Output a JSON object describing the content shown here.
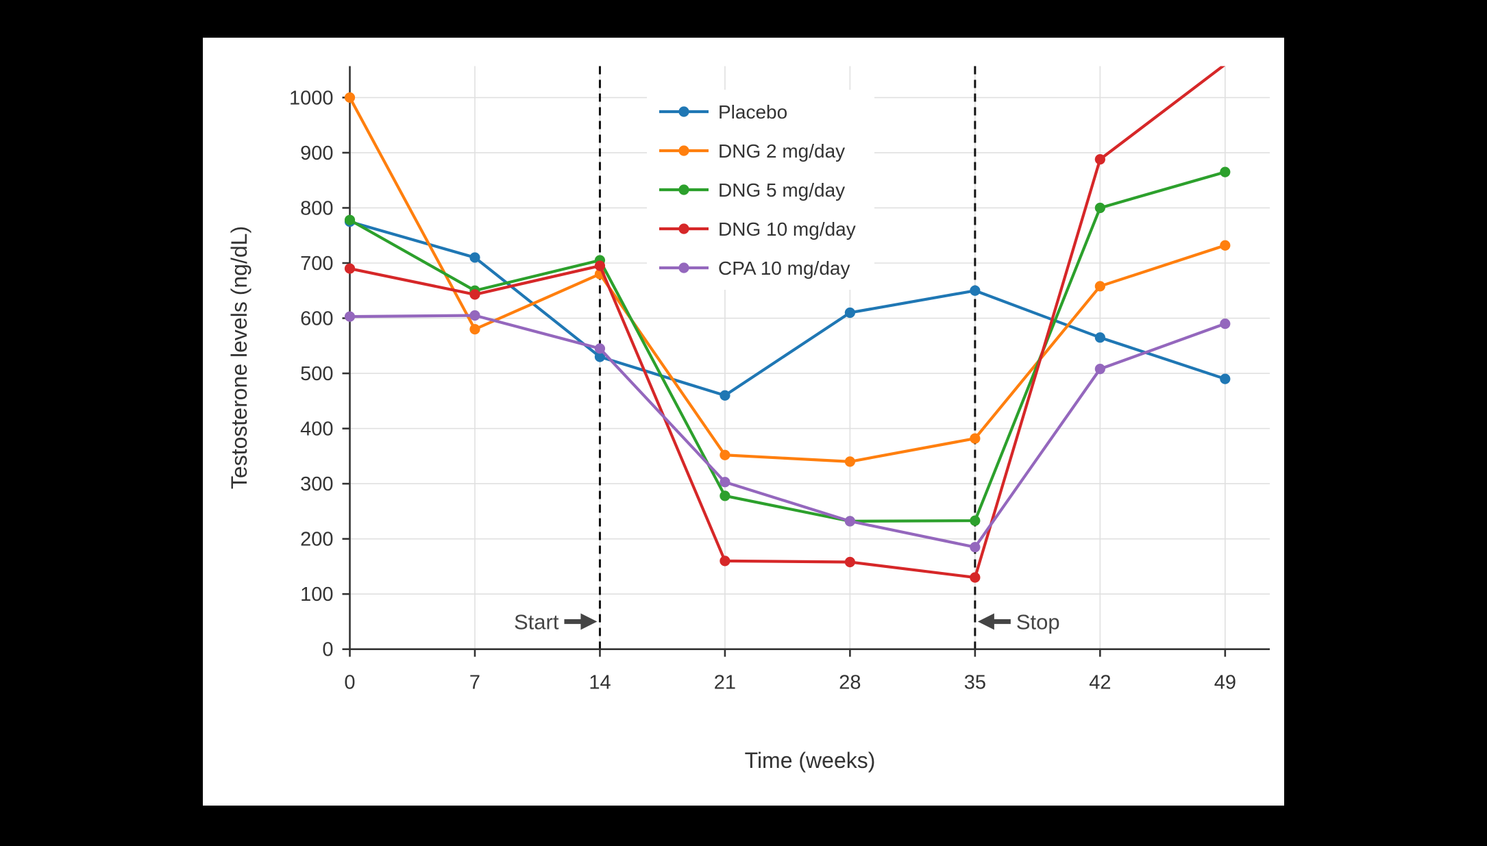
{
  "window": {
    "background": "#000000",
    "panel_background": "#ffffff"
  },
  "chart_data": {
    "type": "line",
    "title": "",
    "xlabel": "Time (weeks)",
    "ylabel": "Testosterone levels (ng/dL)",
    "x": [
      0,
      7,
      14,
      21,
      28,
      35,
      42,
      49
    ],
    "xticks": [
      0,
      7,
      14,
      21,
      28,
      35,
      42,
      49
    ],
    "yticks": [
      0,
      100,
      200,
      300,
      400,
      500,
      600,
      700,
      800,
      900,
      1000
    ],
    "xlim": [
      0,
      51.5
    ],
    "ylim": [
      0,
      1057
    ],
    "grid": true,
    "grid_color": "#e0e0e0",
    "axis_color": "#333333",
    "legend_position": "inside-top-center",
    "series": [
      {
        "name": "Placebo",
        "color": "#1f77b4",
        "values": [
          775,
          710,
          530,
          460,
          610,
          650,
          565,
          490
        ]
      },
      {
        "name": "DNG 2 mg/day",
        "color": "#ff7f0e",
        "values": [
          1000,
          580,
          680,
          352,
          340,
          382,
          658,
          732
        ]
      },
      {
        "name": "DNG 5 mg/day",
        "color": "#2ca02c",
        "values": [
          778,
          650,
          705,
          278,
          232,
          233,
          800,
          865
        ]
      },
      {
        "name": "DNG 10 mg/day",
        "color": "#d62728",
        "values": [
          690,
          643,
          695,
          160,
          158,
          130,
          888,
          1060
        ]
      },
      {
        "name": "CPA 10 mg/day",
        "color": "#9467bd",
        "values": [
          603,
          605,
          545,
          303,
          232,
          185,
          508,
          590
        ]
      }
    ],
    "vlines": [
      {
        "x": 14,
        "style": "dashed",
        "color": "#111111"
      },
      {
        "x": 35,
        "style": "dashed",
        "color": "#111111"
      }
    ],
    "annotations": [
      {
        "text": "Start",
        "x": 14,
        "y": 50,
        "text_side": "left",
        "color": "#444444"
      },
      {
        "text": "Stop",
        "x": 35,
        "y": 50,
        "text_side": "right",
        "color": "#444444"
      }
    ]
  }
}
